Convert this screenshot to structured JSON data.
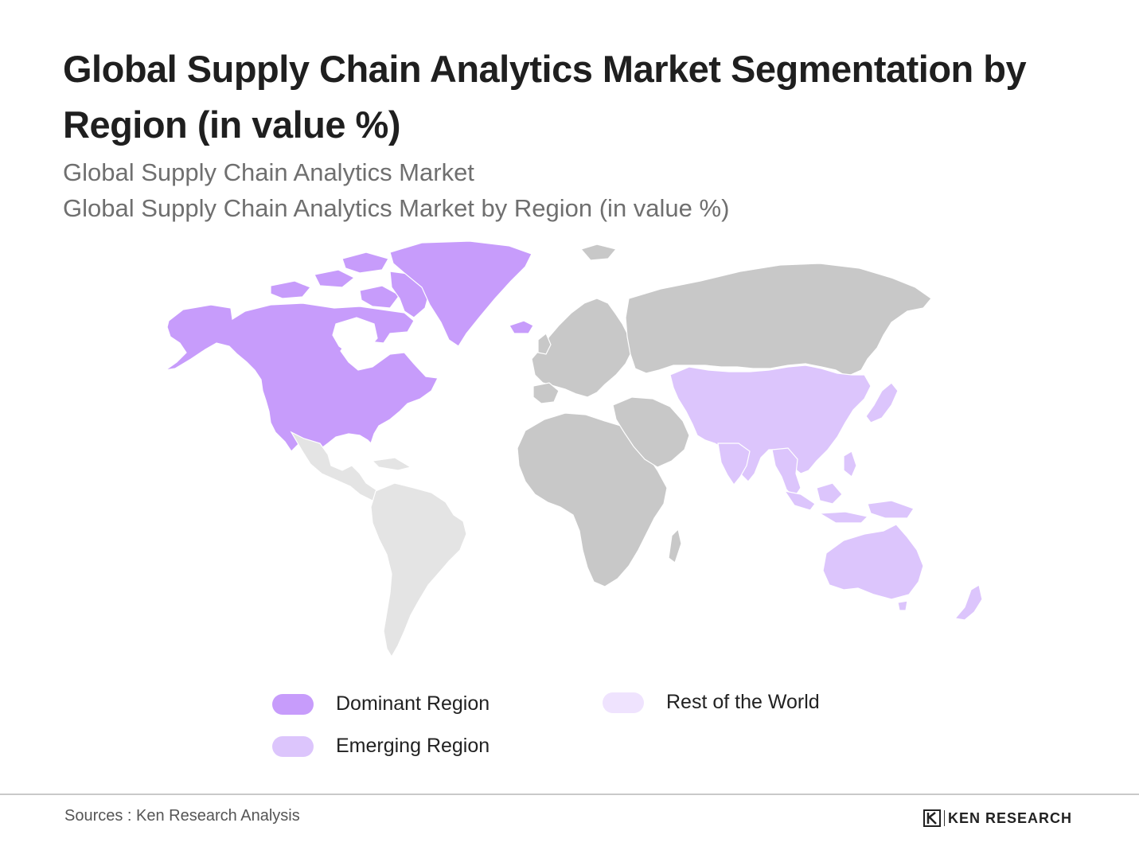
{
  "title": "Global Supply Chain Analytics Market Segmentation by Region (in value %)",
  "subtitle_1": "Global Supply Chain Analytics Market",
  "subtitle_2": "Global Supply Chain Analytics Market by Region (in value %)",
  "colors": {
    "dominant": "#c79cfb",
    "emerging": "#dcc5fc",
    "rest_of_world": "#efe3fe",
    "other_land": "#c8c8c8",
    "south_america": "#e4e4e4"
  },
  "regions": {
    "north_america": "dominant",
    "asia_pacific": "emerging",
    "latin_america": "rest_of_world",
    "europe": "none",
    "africa": "none",
    "middle_east": "none",
    "russia": "none"
  },
  "legend": {
    "dominant": "Dominant Region",
    "emerging": "Emerging Region",
    "rest": "Rest of the World"
  },
  "footer": {
    "source": "Sources : Ken Research Analysis",
    "brand": "KEN RESEARCH",
    "brand_icon": "ken-research-logo-icon"
  }
}
